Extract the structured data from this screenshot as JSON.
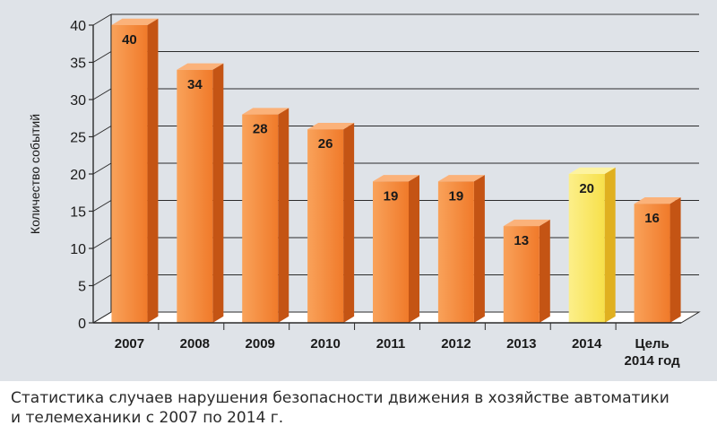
{
  "chart_data": {
    "type": "bar",
    "categories": [
      "2007",
      "2008",
      "2009",
      "2010",
      "2011",
      "2012",
      "2013",
      "2014",
      "Цель\n2014 год"
    ],
    "values": [
      40,
      34,
      28,
      26,
      19,
      19,
      13,
      20,
      16
    ],
    "highlight_index": 7,
    "title": "",
    "xlabel": "",
    "ylabel": "Количество событий",
    "ylim": [
      0,
      40
    ],
    "yticks": [
      0,
      5,
      10,
      15,
      20,
      25,
      30,
      35,
      40
    ],
    "grid": true,
    "colors": {
      "bar_front": "#f07a2a",
      "bar_front_light": "#f9a25a",
      "bar_side": "#c45414",
      "bar_top": "#fbb27a",
      "highlight_front": "#f7e04a",
      "highlight_front_light": "#fcef8a",
      "highlight_side": "#e0b020",
      "highlight_top": "#fdf3a0",
      "floor": "#ffffff",
      "grid": "#2b2b2b",
      "label_text": "#1a1a1a"
    }
  },
  "caption": {
    "line1": "Статистика случаев нарушения безопасности движения в хозяйстве автоматики",
    "line2": "и телемеханики с 2007 по 2014 г."
  }
}
